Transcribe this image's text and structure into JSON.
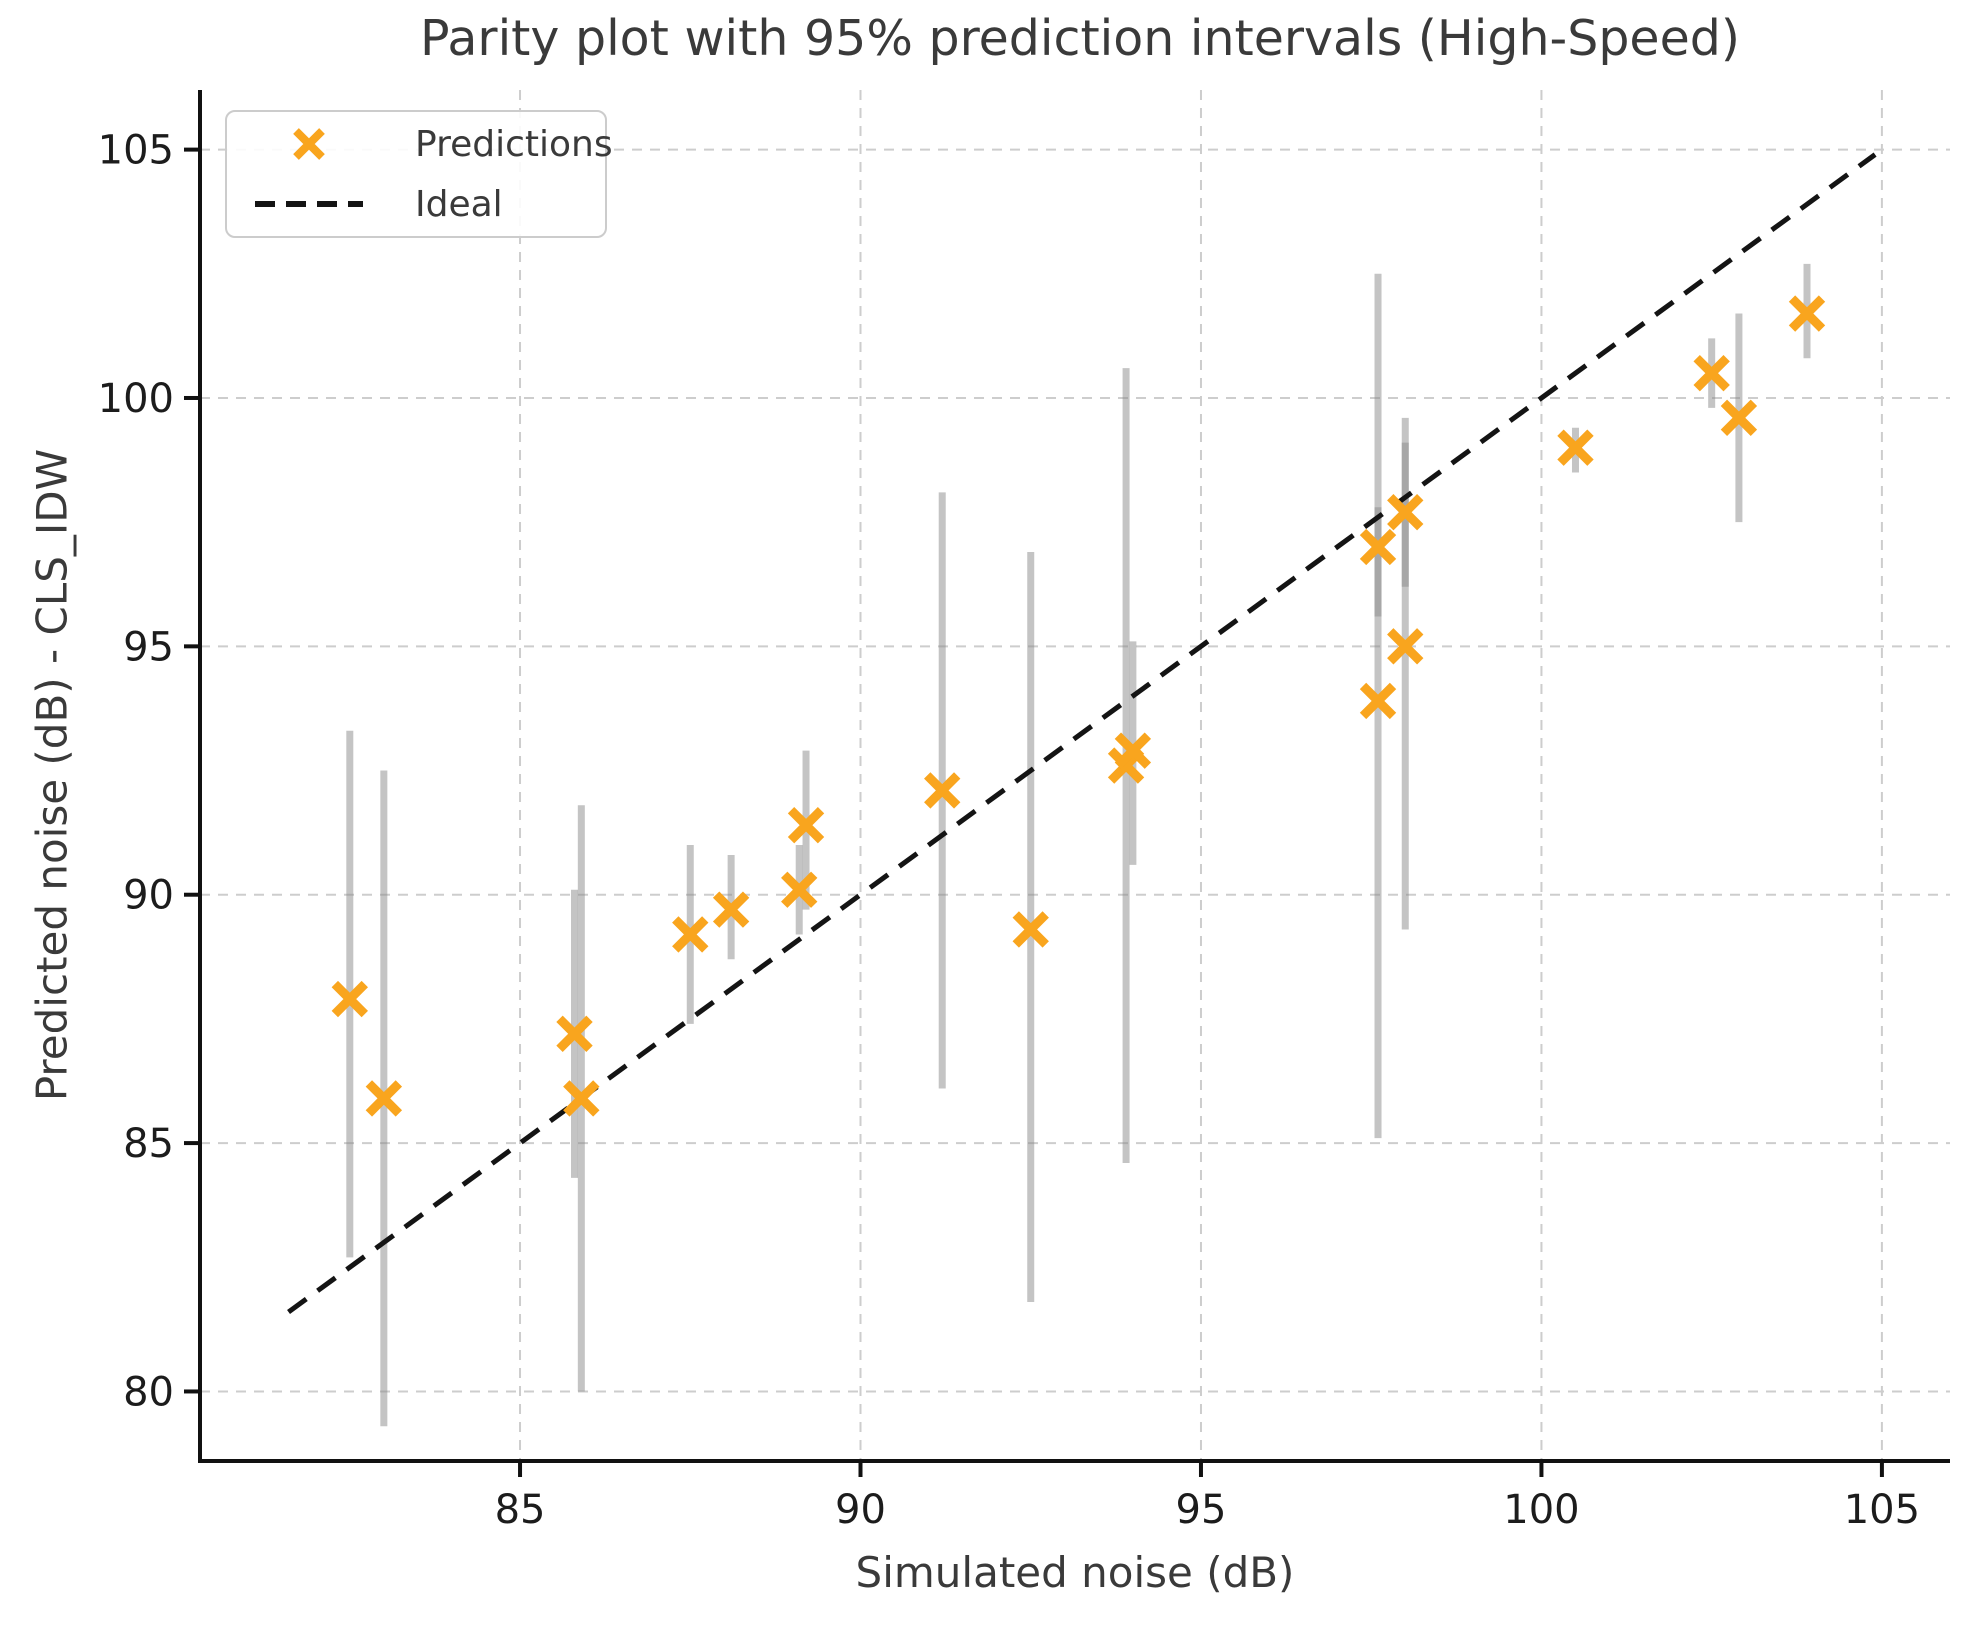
{
  "title": "Parity plot with 95% prediction intervals (High-Speed)",
  "axes": {
    "xlabel": "Simulated noise (dB)",
    "ylabel": "Predicted noise (dB) - CLS_IDW",
    "x_ticks": [
      85,
      90,
      95,
      100,
      105
    ],
    "y_ticks": [
      80,
      85,
      90,
      95,
      100,
      105
    ],
    "xlim": [
      80.3,
      106.0
    ],
    "ylim": [
      78.6,
      106.2
    ]
  },
  "legend": {
    "items": [
      {
        "label": "Predictions",
        "icon": "x-marker-icon"
      },
      {
        "label": "Ideal",
        "icon": "dashed-line-icon"
      }
    ]
  },
  "colors": {
    "marker": "#F9A51E",
    "error_bar": "rgba(138,138,138,0.5)",
    "ideal_line": "#141414",
    "grid": "#cdcdcd",
    "spine": "#111111",
    "tick_text": "#1c1c1c",
    "label_text": "#3a3a3a",
    "legend_border": "#cccccc"
  },
  "chart_data": {
    "type": "scatter",
    "title": "Parity plot with 95% prediction intervals (High-Speed)",
    "xlabel": "Simulated noise (dB)",
    "ylabel": "Predicted noise (dB) - CLS_IDW",
    "xlim": [
      80.3,
      106.0
    ],
    "ylim": [
      78.6,
      106.2
    ],
    "x_ticks": [
      85,
      90,
      95,
      100,
      105
    ],
    "y_ticks": [
      80,
      85,
      90,
      95,
      100,
      105
    ],
    "grid": true,
    "legend_position": "upper left",
    "series": [
      {
        "name": "Predictions",
        "type": "scatter",
        "marker": "x",
        "error_bars": "95% prediction interval",
        "points": [
          {
            "x": 82.5,
            "y": 87.9,
            "pi_low": 82.7,
            "pi_high": 93.3
          },
          {
            "x": 83.0,
            "y": 85.9,
            "pi_low": 79.3,
            "pi_high": 92.5
          },
          {
            "x": 85.8,
            "y": 87.2,
            "pi_low": 84.3,
            "pi_high": 90.1
          },
          {
            "x": 85.9,
            "y": 85.9,
            "pi_low": 80.0,
            "pi_high": 91.8
          },
          {
            "x": 87.5,
            "y": 89.2,
            "pi_low": 87.4,
            "pi_high": 91.0
          },
          {
            "x": 88.1,
            "y": 89.7,
            "pi_low": 88.7,
            "pi_high": 90.8
          },
          {
            "x": 89.1,
            "y": 90.1,
            "pi_low": 89.2,
            "pi_high": 91.0
          },
          {
            "x": 89.2,
            "y": 91.4,
            "pi_low": 89.7,
            "pi_high": 92.9
          },
          {
            "x": 91.2,
            "y": 92.1,
            "pi_low": 86.1,
            "pi_high": 98.1
          },
          {
            "x": 92.5,
            "y": 89.3,
            "pi_low": 81.8,
            "pi_high": 96.9
          },
          {
            "x": 93.9,
            "y": 92.6,
            "pi_low": 84.6,
            "pi_high": 100.6
          },
          {
            "x": 94.0,
            "y": 92.9,
            "pi_low": 90.6,
            "pi_high": 95.1
          },
          {
            "x": 97.6,
            "y": 97.0,
            "pi_low": 95.6,
            "pi_high": 97.8
          },
          {
            "x": 97.6,
            "y": 93.9,
            "pi_low": 85.1,
            "pi_high": 102.5
          },
          {
            "x": 98.0,
            "y": 97.7,
            "pi_low": 96.2,
            "pi_high": 99.1
          },
          {
            "x": 98.0,
            "y": 95.0,
            "pi_low": 89.3,
            "pi_high": 99.6
          },
          {
            "x": 100.5,
            "y": 99.0,
            "pi_low": 98.5,
            "pi_high": 99.4
          },
          {
            "x": 102.5,
            "y": 100.5,
            "pi_low": 99.8,
            "pi_high": 101.2
          },
          {
            "x": 102.9,
            "y": 99.6,
            "pi_low": 97.5,
            "pi_high": 101.7
          },
          {
            "x": 103.9,
            "y": 101.7,
            "pi_low": 100.8,
            "pi_high": 102.7
          }
        ]
      },
      {
        "name": "Ideal",
        "type": "line",
        "style": "dashed",
        "x": [
          81.6,
          104.9
        ],
        "y": [
          81.6,
          104.9
        ]
      }
    ]
  }
}
